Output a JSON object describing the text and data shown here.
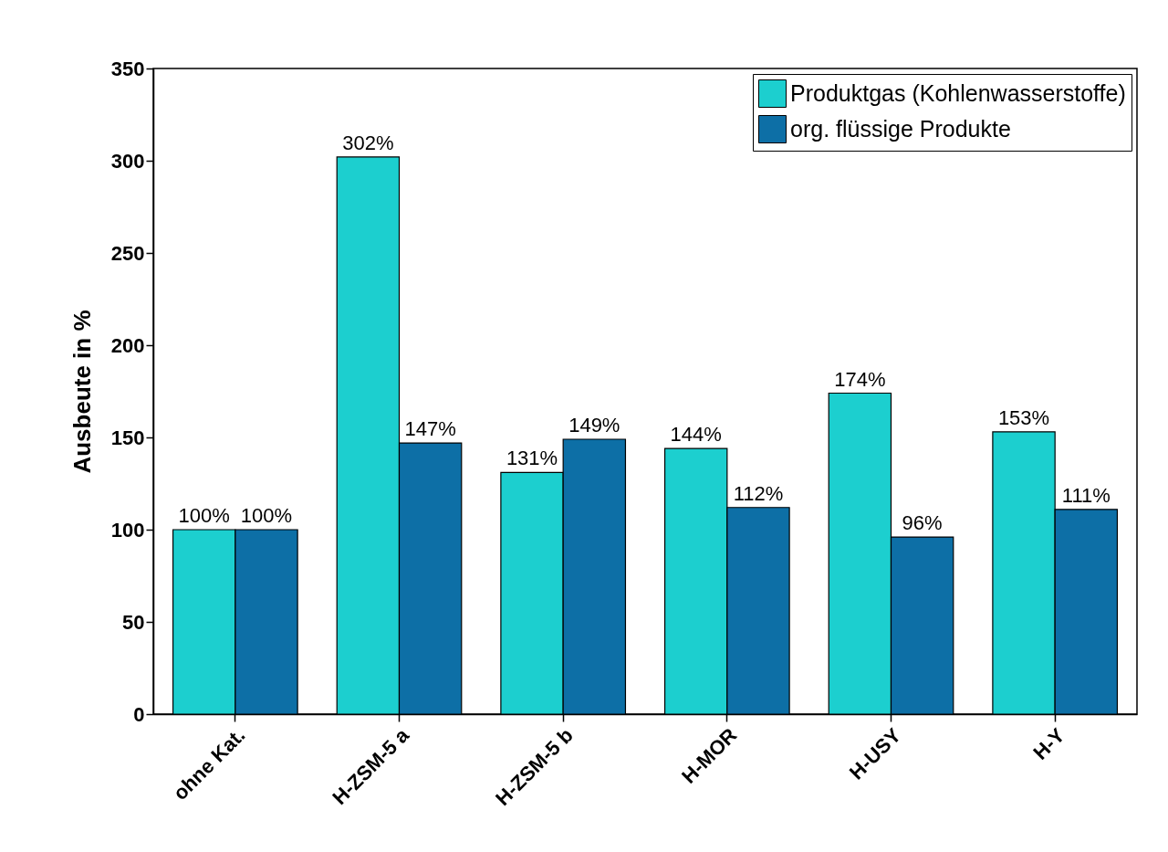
{
  "chart_data": {
    "type": "bar",
    "ylabel": "Ausbeute  in %",
    "categories": [
      "ohne Kat.",
      "H-ZSM-5 a",
      "H-ZSM-5 b",
      "H-MOR",
      "H-USY",
      "H-Y"
    ],
    "series": [
      {
        "name": "Produktgas (Kohlenwasserstoffe)",
        "color": "#1ccfcf",
        "values": [
          100,
          302,
          131,
          144,
          174,
          153
        ],
        "value_labels": [
          "100%",
          "302%",
          "131%",
          "144%",
          "174%",
          "153%"
        ]
      },
      {
        "name": "org. flüssige Produkte",
        "color": "#0d6fa6",
        "values": [
          100,
          147,
          149,
          112,
          96,
          111
        ],
        "value_labels": [
          "100%",
          "147%",
          "149%",
          "112%",
          "96%",
          "111%"
        ]
      }
    ],
    "ylim": [
      0,
      350
    ],
    "yticks": [
      0,
      50,
      100,
      150,
      200,
      250,
      300,
      350
    ],
    "legend": "top right"
  }
}
